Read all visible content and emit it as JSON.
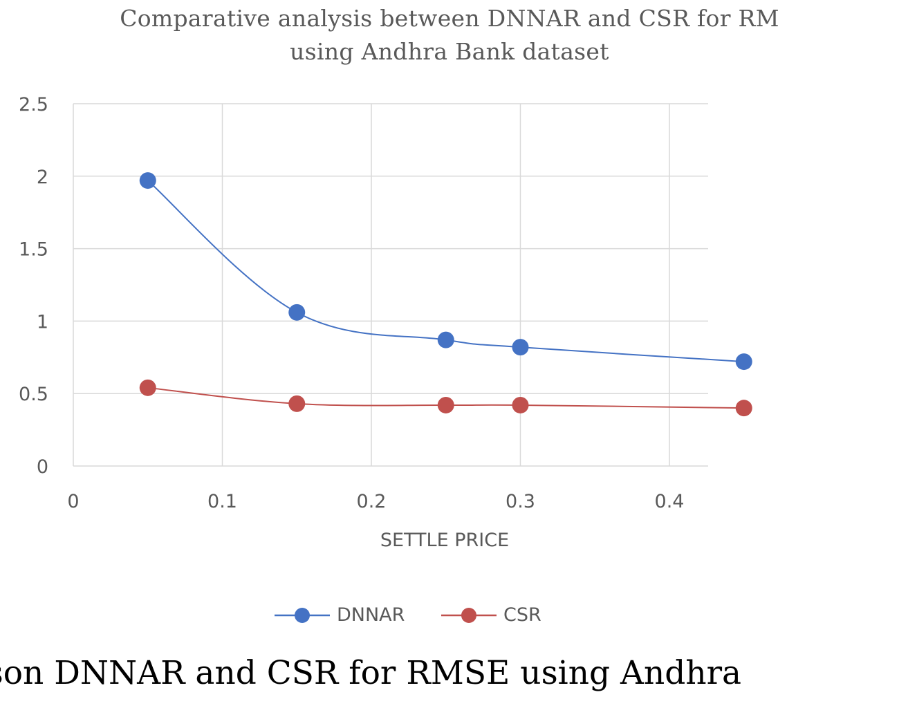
{
  "colors": {
    "dnnar": "#4472C4",
    "csr": "#C0504D",
    "grid": "#d9d9d9",
    "text": "#595959"
  },
  "caption": "parison DNNAR and CSR for RMSE using Andhra",
  "chart_data": {
    "type": "line",
    "title": "Comparative  analysis between  DNNAR and  CSR for RM",
    "subtitle": "using Andhra  Bank dataset",
    "xlabel": "SETTLE PRICE",
    "ylabel": "",
    "x_ticks": [
      "0",
      "0.1",
      "0.2",
      "0.3",
      "0.4"
    ],
    "y_ticks": [
      "0",
      "0.5",
      "1",
      "1.5",
      "2",
      "2.5"
    ],
    "xlim": [
      0,
      0.425
    ],
    "ylim": [
      0,
      2.5
    ],
    "grid": true,
    "smooth": true,
    "legend_position": "bottom",
    "series": [
      {
        "name": "DNNAR",
        "color": "#4472C4",
        "points": [
          {
            "x": 0.05,
            "y": 1.97
          },
          {
            "x": 0.15,
            "y": 1.06
          },
          {
            "x": 0.25,
            "y": 0.87
          },
          {
            "x": 0.3,
            "y": 0.82
          },
          {
            "x": 0.45,
            "y": 0.72
          }
        ]
      },
      {
        "name": "CSR",
        "color": "#C0504D",
        "points": [
          {
            "x": 0.05,
            "y": 0.54
          },
          {
            "x": 0.15,
            "y": 0.43
          },
          {
            "x": 0.25,
            "y": 0.42
          },
          {
            "x": 0.3,
            "y": 0.42
          },
          {
            "x": 0.45,
            "y": 0.4
          }
        ]
      }
    ]
  }
}
